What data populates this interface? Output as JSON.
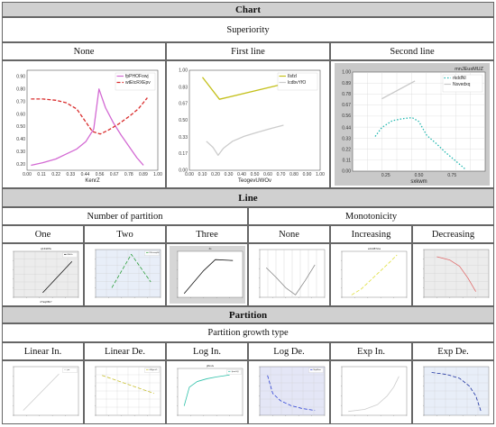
{
  "table": {
    "sections": [
      {
        "title": "Chart",
        "subtitle": "Superiority",
        "columns": [
          "None",
          "First line",
          "Second line"
        ]
      },
      {
        "title": "Line",
        "groups": [
          "Number of partition",
          "Monotonicity"
        ],
        "columns": [
          "One",
          "Two",
          "Three",
          "None",
          "Increasing",
          "Decreasing"
        ]
      },
      {
        "title": "Partition",
        "subtitle": "Partition growth type",
        "columns": [
          "Linear In.",
          "Linear De.",
          "Log In.",
          "Log De.",
          "Exp In.",
          "Exp De."
        ]
      }
    ]
  },
  "chart_data": [
    {
      "id": "superiority-none",
      "type": "line",
      "xlabel": "KenrZ",
      "ylabel": "",
      "xlim": [
        0.0,
        1.0
      ],
      "ylim": [
        0.15,
        0.95
      ],
      "xticks": [
        "0.00",
        "0.11",
        "0.22",
        "0.33",
        "0.44",
        "0.56",
        "0.67",
        "0.78",
        "0.89",
        "1.00"
      ],
      "yticks": [
        "0.20",
        "0.30",
        "0.40",
        "0.50",
        "0.60",
        "0.70",
        "0.80",
        "0.90"
      ],
      "legend": "top-right",
      "grid": false,
      "series": [
        {
          "name": "fpPHOFowj",
          "color": "#d36ad3",
          "dash": "solid",
          "x": [
            0.03,
            0.12,
            0.22,
            0.3,
            0.38,
            0.45,
            0.51,
            0.55,
            0.6,
            0.66,
            0.72,
            0.78,
            0.84,
            0.89
          ],
          "y": [
            0.19,
            0.21,
            0.24,
            0.28,
            0.32,
            0.38,
            0.48,
            0.8,
            0.65,
            0.53,
            0.43,
            0.34,
            0.25,
            0.19
          ]
        },
        {
          "name": "wtEtcRXEpv",
          "color": "#d92b2b",
          "dash": "dashed",
          "x": [
            0.03,
            0.12,
            0.22,
            0.3,
            0.38,
            0.44,
            0.5,
            0.56,
            0.62,
            0.7,
            0.78,
            0.85,
            0.92
          ],
          "y": [
            0.72,
            0.72,
            0.71,
            0.69,
            0.64,
            0.55,
            0.46,
            0.44,
            0.47,
            0.52,
            0.58,
            0.64,
            0.73
          ]
        }
      ]
    },
    {
      "id": "superiority-first-line",
      "type": "line",
      "xlabel": "TeogevUWOv",
      "ylabel": "",
      "xlim": [
        0.0,
        1.0
      ],
      "ylim": [
        0.0,
        1.0
      ],
      "xticks": [
        "0.00",
        "0.10",
        "0.20",
        "0.30",
        "0.40",
        "0.50",
        "0.60",
        "0.70",
        "0.80",
        "0.90",
        "1.00"
      ],
      "yticks": [
        "0.00",
        "0.17",
        "0.33",
        "0.50",
        "0.67",
        "0.83",
        "1.00"
      ],
      "legend": "top-right",
      "grid": false,
      "series": [
        {
          "name": "IlsfzI",
          "color": "#c4c01a",
          "dash": "solid",
          "x": [
            0.1,
            0.23,
            0.68
          ],
          "y": [
            0.93,
            0.71,
            0.85
          ]
        },
        {
          "name": "lcdbvYfO",
          "color": "#cccccc",
          "dash": "solid",
          "x": [
            0.13,
            0.18,
            0.22,
            0.26,
            0.33,
            0.42,
            0.52,
            0.63,
            0.72
          ],
          "y": [
            0.29,
            0.23,
            0.15,
            0.22,
            0.29,
            0.34,
            0.38,
            0.42,
            0.45
          ]
        }
      ]
    },
    {
      "id": "superiority-second-line",
      "type": "line",
      "title": "mnJEusMUZ",
      "xlabel": "sxkwm",
      "ylabel": "",
      "xlim": [
        0.0,
        1.0
      ],
      "ylim": [
        0.0,
        1.0
      ],
      "xticks": [
        "0.25",
        "0.50",
        "0.75"
      ],
      "yticks": [
        "0.00",
        "0.11",
        "0.22",
        "0.33",
        "0.44",
        "0.56",
        "0.67",
        "0.78",
        "0.89",
        "1.00"
      ],
      "legend": "top-right",
      "grid": true,
      "series": [
        {
          "name": "rkddNI",
          "color": "#22b8b0",
          "dash": "dotted",
          "x": [
            0.17,
            0.22,
            0.3,
            0.38,
            0.45,
            0.5,
            0.56,
            0.63,
            0.7,
            0.78,
            0.85
          ],
          "y": [
            0.35,
            0.44,
            0.51,
            0.53,
            0.54,
            0.5,
            0.36,
            0.28,
            0.19,
            0.1,
            0.02
          ]
        },
        {
          "name": "Nsvedxq",
          "color": "#c8c8c8",
          "dash": "solid",
          "x": [
            0.22,
            0.47
          ],
          "y": [
            0.73,
            0.91
          ]
        }
      ]
    },
    {
      "id": "line-one",
      "type": "line",
      "title": "sjKJhdRHe",
      "xlabel": "nfYasjOBnY",
      "ylabel": "",
      "xlim": [
        0,
        1
      ],
      "ylim": [
        0,
        1
      ],
      "legend": "top-right",
      "grid": true,
      "series": [
        {
          "name": "fMhLb",
          "color": "#111111",
          "dash": "solid",
          "x": [
            0.45,
            0.9
          ],
          "y": [
            0.1,
            0.78
          ]
        }
      ]
    },
    {
      "id": "line-two",
      "type": "line",
      "title": "",
      "xlabel": "",
      "ylabel": "",
      "xlim": [
        0,
        1
      ],
      "ylim": [
        0,
        1
      ],
      "legend": "top-right",
      "grid": true,
      "series": [
        {
          "name": "KFcrwajsM",
          "color": "#2b9e3a",
          "dash": "dashed",
          "x": [
            0.25,
            0.55,
            0.85
          ],
          "y": [
            0.2,
            0.9,
            0.32
          ]
        }
      ]
    },
    {
      "id": "line-three",
      "type": "line",
      "title": "Zo",
      "xlabel": "",
      "ylabel": "",
      "xlim": [
        0,
        1
      ],
      "ylim": [
        0,
        1
      ],
      "legend": "none",
      "grid": false,
      "series": [
        {
          "name": "",
          "color": "#111111",
          "dash": "solid",
          "x": [
            0.1,
            0.4,
            0.58,
            0.85
          ],
          "y": [
            0.08,
            0.58,
            0.82,
            0.8
          ]
        }
      ]
    },
    {
      "id": "line-none",
      "type": "line",
      "title": "",
      "xlabel": "",
      "ylabel": "",
      "xlim": [
        0,
        1
      ],
      "ylim": [
        0,
        1
      ],
      "legend": "top-right",
      "grid": false,
      "series": [
        {
          "name": "",
          "color": "#888888",
          "dash": "solid",
          "x": [
            0.1,
            0.25,
            0.4,
            0.55,
            0.7,
            0.85
          ],
          "y": [
            0.62,
            0.42,
            0.2,
            0.05,
            0.35,
            0.68
          ]
        }
      ]
    },
    {
      "id": "line-increasing",
      "type": "line",
      "title": "uaVtIdBTxGs",
      "xlabel": "",
      "ylabel": "",
      "xlim": [
        0,
        1
      ],
      "ylim": [
        0,
        1
      ],
      "legend": "none",
      "grid": false,
      "series": [
        {
          "name": "",
          "color": "#e0e040",
          "dash": "dashed",
          "x": [
            0.15,
            0.3,
            0.45,
            0.6,
            0.75,
            0.85
          ],
          "y": [
            0.05,
            0.18,
            0.38,
            0.58,
            0.78,
            0.92
          ]
        }
      ]
    },
    {
      "id": "line-decreasing",
      "type": "line",
      "title": "",
      "xlabel": "",
      "ylabel": "",
      "xlim": [
        0,
        1
      ],
      "ylim": [
        0,
        1
      ],
      "legend": "none",
      "grid": true,
      "series": [
        {
          "name": "",
          "color": "#e06a6a",
          "dash": "solid",
          "x": [
            0.2,
            0.4,
            0.55,
            0.68,
            0.8
          ],
          "y": [
            0.85,
            0.78,
            0.65,
            0.4,
            0.12
          ]
        }
      ]
    },
    {
      "id": "partition-linear-in",
      "type": "line",
      "title": "",
      "xlabel": "",
      "ylabel": "",
      "xlim": [
        0,
        1
      ],
      "ylim": [
        0,
        1
      ],
      "legend": "top-right",
      "grid": false,
      "series": [
        {
          "name": "jwr",
          "color": "#cccccc",
          "dash": "solid",
          "x": [
            0.15,
            0.7
          ],
          "y": [
            0.1,
            0.85
          ]
        }
      ]
    },
    {
      "id": "partition-linear-de",
      "type": "line",
      "title": "",
      "xlabel": "",
      "ylabel": "",
      "xlim": [
        0,
        1
      ],
      "ylim": [
        0,
        1
      ],
      "legend": "top-right",
      "grid": true,
      "series": [
        {
          "name": "cRfjpcsG",
          "color": "#c8c030",
          "dash": "dashed",
          "x": [
            0.1,
            0.9
          ],
          "y": [
            0.82,
            0.45
          ]
        }
      ]
    },
    {
      "id": "partition-log-in",
      "type": "line",
      "title": "gRsnJe",
      "xlabel": "",
      "ylabel": "",
      "xlim": [
        0,
        1
      ],
      "ylim": [
        0,
        1
      ],
      "legend": "right",
      "grid": false,
      "series": [
        {
          "name": "JpxeGQ",
          "color": "#2cc0a8",
          "dash": "solid",
          "x": [
            0.1,
            0.18,
            0.3,
            0.45,
            0.6,
            0.8
          ],
          "y": [
            0.2,
            0.6,
            0.72,
            0.78,
            0.82,
            0.86
          ]
        }
      ]
    },
    {
      "id": "partition-log-de",
      "type": "line",
      "title": "",
      "xlabel": "",
      "ylabel": "",
      "xlim": [
        0,
        1
      ],
      "ylim": [
        0,
        1
      ],
      "legend": "top-right",
      "grid": true,
      "series": [
        {
          "name": "NtpiRow",
          "color": "#2a3fd4",
          "dash": "dashed",
          "x": [
            0.12,
            0.2,
            0.32,
            0.48,
            0.65,
            0.85
          ],
          "y": [
            0.82,
            0.45,
            0.3,
            0.2,
            0.14,
            0.1
          ]
        }
      ]
    },
    {
      "id": "partition-exp-in",
      "type": "line",
      "title": "",
      "xlabel": "",
      "ylabel": "",
      "xlim": [
        0,
        1
      ],
      "ylim": [
        0,
        1
      ],
      "legend": "none",
      "grid": false,
      "series": [
        {
          "name": "",
          "color": "#cccccc",
          "dash": "solid",
          "x": [
            0.1,
            0.35,
            0.55,
            0.7,
            0.8,
            0.88
          ],
          "y": [
            0.08,
            0.12,
            0.22,
            0.4,
            0.58,
            0.8
          ]
        }
      ]
    },
    {
      "id": "partition-exp-de",
      "type": "line",
      "title": "",
      "xlabel": "",
      "ylabel": "",
      "xlim": [
        0,
        1
      ],
      "ylim": [
        0,
        1
      ],
      "legend": "top-right",
      "grid": true,
      "series": [
        {
          "name": "",
          "color": "#1a2fa0",
          "dash": "dashed",
          "x": [
            0.12,
            0.35,
            0.55,
            0.7,
            0.8,
            0.88
          ],
          "y": [
            0.88,
            0.84,
            0.76,
            0.6,
            0.4,
            0.08
          ]
        }
      ]
    }
  ]
}
